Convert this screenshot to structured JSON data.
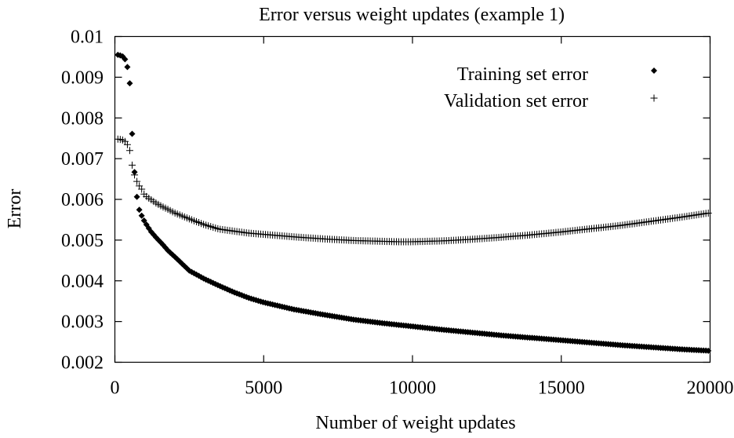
{
  "chart_data": {
    "type": "scatter",
    "title": "Error versus weight updates (example 1)",
    "xlabel": "Number of weight updates",
    "ylabel": "Error",
    "xlim": [
      0,
      20000
    ],
    "ylim": [
      0.002,
      0.01
    ],
    "xticks": [
      "0",
      "5000",
      "10000",
      "15000",
      "20000"
    ],
    "yticks": [
      "0.002",
      "0.003",
      "0.004",
      "0.005",
      "0.006",
      "0.007",
      "0.008",
      "0.009",
      "0.01"
    ],
    "grid": false,
    "legend_position": "top-right",
    "series": [
      {
        "name": "Training set error",
        "marker": "diamond",
        "x": [
          100,
          200,
          300,
          400,
          500,
          600,
          700,
          800,
          900,
          1000,
          1200,
          1400,
          1600,
          1800,
          2000,
          2500,
          3000,
          3500,
          4000,
          4500,
          5000,
          6000,
          7000,
          8000,
          9000,
          10000,
          11000,
          12000,
          13000,
          14000,
          15000,
          16000,
          17000,
          18000,
          19000,
          20000
        ],
        "y": [
          0.00955,
          0.00953,
          0.0095,
          0.00935,
          0.00885,
          0.0073,
          0.00625,
          0.00578,
          0.0056,
          0.00545,
          0.00522,
          0.00505,
          0.0049,
          0.00473,
          0.0046,
          0.00425,
          0.00405,
          0.00388,
          0.00372,
          0.00358,
          0.00347,
          0.0033,
          0.00317,
          0.00305,
          0.00296,
          0.00288,
          0.0028,
          0.00273,
          0.00266,
          0.0026,
          0.00254,
          0.00248,
          0.00242,
          0.00237,
          0.00232,
          0.00228
        ]
      },
      {
        "name": "Validation set error",
        "marker": "plus",
        "x": [
          100,
          200,
          300,
          400,
          500,
          600,
          700,
          800,
          900,
          1000,
          1200,
          1400,
          1600,
          1800,
          2000,
          2500,
          3000,
          3500,
          4000,
          4500,
          5000,
          6000,
          7000,
          8000,
          9000,
          9500,
          10000,
          11000,
          12000,
          13000,
          14000,
          15000,
          16000,
          17000,
          18000,
          19000,
          20000
        ],
        "y": [
          0.00748,
          0.00747,
          0.00745,
          0.00738,
          0.0072,
          0.00675,
          0.0065,
          0.00635,
          0.00625,
          0.0061,
          0.006,
          0.0059,
          0.00582,
          0.00575,
          0.00567,
          0.00552,
          0.00538,
          0.00527,
          0.00522,
          0.00517,
          0.00514,
          0.00508,
          0.00503,
          0.00499,
          0.00497,
          0.00496,
          0.00496,
          0.00498,
          0.00502,
          0.00507,
          0.00513,
          0.0052,
          0.00528,
          0.00536,
          0.00546,
          0.00556,
          0.00567
        ]
      }
    ]
  }
}
